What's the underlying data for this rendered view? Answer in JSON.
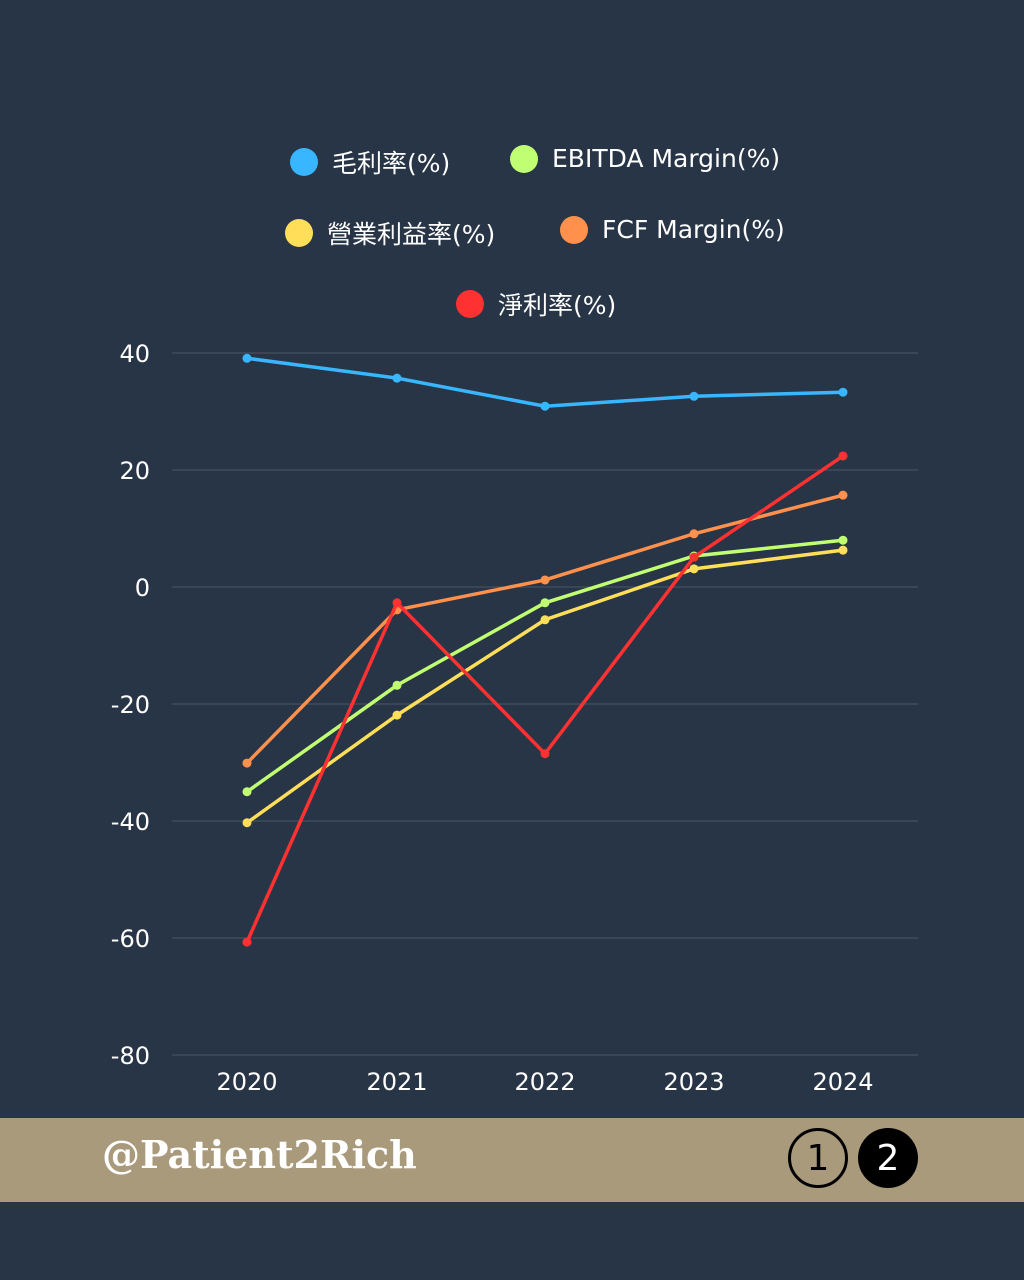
{
  "chart_data": {
    "type": "line",
    "categories": [
      "2020",
      "2021",
      "2022",
      "2023",
      "2024"
    ],
    "ylim": [
      -80,
      40
    ],
    "yticks": [
      40,
      20,
      0,
      -20,
      -40,
      -60,
      -80
    ],
    "grid": true,
    "legend_position": "top",
    "series": [
      {
        "name": "毛利率(%)",
        "color": "#38b6ff",
        "values": [
          39.1,
          35.7,
          30.9,
          32.6,
          33.3
        ]
      },
      {
        "name": "EBITDA Margin(%)",
        "color": "#c1ff72",
        "values": [
          -35.0,
          -16.8,
          -2.7,
          5.3,
          8.0
        ]
      },
      {
        "name": "營業利益率(%)",
        "color": "#ffde59",
        "values": [
          -40.3,
          -21.9,
          -5.6,
          3.1,
          6.3
        ]
      },
      {
        "name": "FCF Margin(%)",
        "color": "#ff914d",
        "values": [
          -30.1,
          -3.9,
          1.2,
          9.1,
          15.7
        ]
      },
      {
        "name": "淨利率(%)",
        "color": "#ff3131",
        "values": [
          -60.7,
          -2.7,
          -28.5,
          5.1,
          22.4
        ]
      }
    ]
  },
  "footer": {
    "handle": "@Patient2Rich",
    "pages": [
      "1",
      "2"
    ],
    "current_page": "2",
    "color": "#aa9a7c"
  }
}
